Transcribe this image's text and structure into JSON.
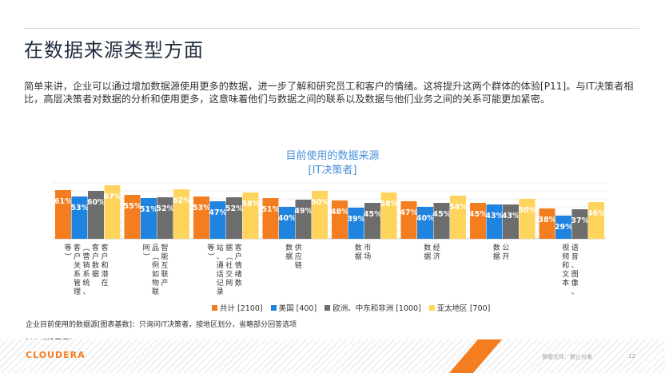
{
  "page": {
    "title": "在数据来源类型方面",
    "intro": "简单来讲，企业可以通过增加数据源使用更多的数据，进一步了解和研究员工和客户的情绪。这将提升这两个群体的体验[P11]。与IT决策者相比，高层决策者对数据的分析和使用更多，这意味着他们与数据之间的联系以及数据与他们业务之间的关系可能更加紧密。",
    "chart_title_line1": "目前使用的数据来源",
    "chart_title_line2": "[IT决策者]",
    "footnote": "企业目前使用的数据源[图表基数]：只询问IT决策者，按地区划分，省略部分回答选项",
    "question": "[Q1 IT决策者]",
    "brand": "CLOUDERA",
    "confidential": "保密文件：禁止分发",
    "page_number": "12"
  },
  "colors": {
    "total": "#f47d20",
    "us": "#1f84e0",
    "emea": "#6d6d6d",
    "apac": "#ffd45c",
    "title_blue": "#4a90d9"
  },
  "chart_data": {
    "type": "bar",
    "categories": [
      "客户和潜在客户数据（营销系统、客户关系管理等）",
      "智能互联产品（例如物联网）",
      "客户情绪数据（社交网站、通话记录等）",
      "供应链数据",
      "市场数据",
      "经济数据",
      "公开数据",
      "语音、图像、视频和文本"
    ],
    "category_lines": [
      [
        "客户和潜在",
        "客户数据",
        "（营销系统、",
        "客户关系管理",
        "等）"
      ],
      [
        "智能互联产",
        "品（例如物联",
        "网）"
      ],
      [
        "客户情绪数",
        "据（社交网",
        "站、通话记录",
        "等）"
      ],
      [
        "供应链",
        "数据"
      ],
      [
        "市场",
        "数据"
      ],
      [
        "经济",
        "数据"
      ],
      [
        "公开",
        "数据"
      ],
      [
        "语音、图像、",
        "视频和文本"
      ]
    ],
    "series": [
      {
        "name": "共计 [2100]",
        "values": [
          61,
          55,
          53,
          51,
          48,
          47,
          45,
          38
        ]
      },
      {
        "name": "美国 [400]",
        "values": [
          53,
          51,
          47,
          40,
          39,
          40,
          43,
          29
        ]
      },
      {
        "name": "欧洲、中东和非洲 [1000]",
        "values": [
          60,
          52,
          52,
          49,
          45,
          45,
          43,
          37
        ]
      },
      {
        "name": "亚太地区 [700]",
        "values": [
          67,
          62,
          58,
          60,
          58,
          54,
          50,
          46
        ]
      }
    ],
    "ylim": [
      0,
      70
    ],
    "grid": true,
    "legend_position": "bottom"
  }
}
